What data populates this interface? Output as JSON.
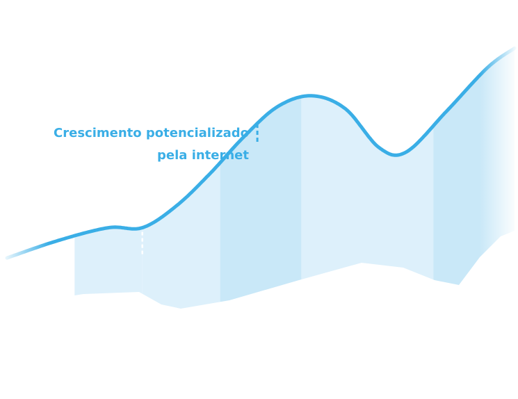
{
  "chart_data": {
    "type": "area",
    "title": "",
    "xlabel": "",
    "ylabel": "",
    "grid": false,
    "legend": "none",
    "colors": {
      "line": "#3aaee6",
      "band_light": "#ddf0fb",
      "band_mid": "#c9e8f8",
      "annotation": "#3aaee6",
      "marker_start": "#ffffff"
    },
    "series": [
      {
        "values": [
          {
            "x": 0,
            "y": 10
          },
          {
            "x": 15,
            "y": 18
          },
          {
            "x": 30,
            "y": 24
          },
          {
            "x": 40,
            "y": 24
          },
          {
            "x": 50,
            "y": 34
          },
          {
            "x": 60,
            "y": 49
          },
          {
            "x": 70,
            "y": 66
          },
          {
            "x": 80,
            "y": 80
          },
          {
            "x": 90,
            "y": 85
          },
          {
            "x": 100,
            "y": 79
          },
          {
            "x": 110,
            "y": 61
          },
          {
            "x": 118,
            "y": 59
          },
          {
            "x": 130,
            "y": 78
          },
          {
            "x": 142,
            "y": 98
          },
          {
            "x": 150,
            "y": 107
          }
        ]
      }
    ],
    "xlim": [
      0,
      150
    ],
    "ylim": [
      -25,
      110
    ],
    "bands": [
      {
        "x0": 20,
        "x1": 40
      },
      {
        "x0": 40,
        "x1": 63
      },
      {
        "x0": 63,
        "x1": 87,
        "emphasis": true
      },
      {
        "x0": 87,
        "x1": 126
      },
      {
        "x0": 126,
        "x1": 150,
        "emphasis": true
      }
    ],
    "markers": [
      {
        "x": 40,
        "type": "start"
      },
      {
        "x": 74,
        "type": "annotation"
      }
    ],
    "annotation": {
      "line1": "Crescimento potencializado",
      "line2": "pela internet"
    }
  }
}
